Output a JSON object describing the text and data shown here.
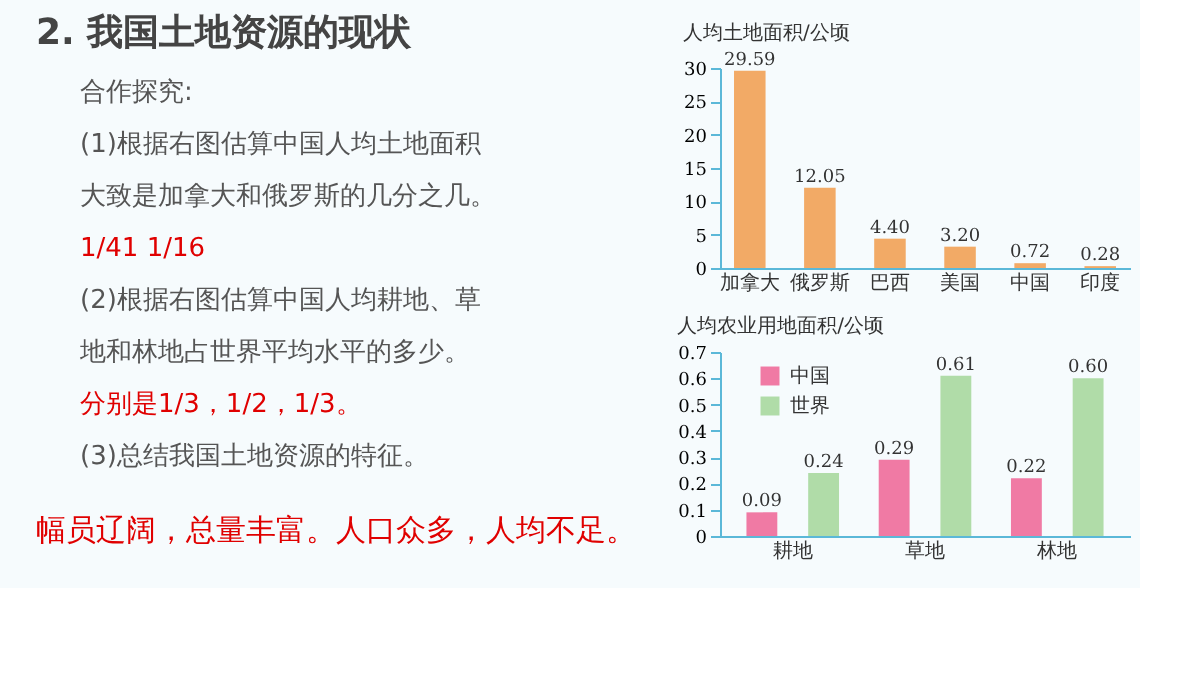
{
  "chart_data": [
    {
      "type": "other",
      "title": "2. 我国土地资源的现状",
      "annotations": [
        "合作探究:",
        "(1)根据右图估算中国人均土地面积",
        "大致是加拿大和俄罗斯的几分之几。",
        "1/41      1/16",
        "(2)根据右图估算中国人均耕地、草",
        "地和林地占世界平均水平的多少。",
        "分别是1/3，1/2，1/3。",
        "(3)总结我国土地资源的特征。",
        "幅员辽阔，总量丰富。人口众多，人均不足。"
      ],
      "colors": [
        "#555555",
        "#555555",
        "#555555",
        "#e00000",
        "#555555",
        "#555555",
        "#e00000",
        "#555555",
        "#e00000"
      ]
    },
    {
      "type": "bar",
      "ylabel": "人均土地面积/公顷",
      "categories": [
        "加拿大",
        "俄罗斯",
        "巴西",
        "美国",
        "中国",
        "印度"
      ],
      "values": [
        29.59,
        12.05,
        4.4,
        3.2,
        0.72,
        0.28
      ],
      "color": "#f2aa66",
      "value_labels": [
        "29.59",
        "12.05",
        "4.40",
        "3.20",
        "0.72",
        "0.28"
      ],
      "ylim": [
        0,
        30
      ],
      "yticks": [
        0,
        5,
        10,
        15,
        20,
        25,
        30
      ]
    },
    {
      "type": "bar",
      "ylabel": "人均农业用地面积/公顷",
      "categories": [
        "耕地",
        "草地",
        "林地"
      ],
      "series": [
        {
          "name": "中国",
          "color": "#f07aa4",
          "values": [
            0.09,
            0.29,
            0.22
          ],
          "value_labels": [
            "0.09",
            "0.29",
            "0.22"
          ]
        },
        {
          "name": "世界",
          "color": "#b0dca8",
          "values": [
            0.24,
            0.61,
            0.6
          ],
          "value_labels": [
            "0.24",
            "0.61",
            "0.60"
          ]
        }
      ],
      "ylim": [
        0,
        0.7
      ],
      "yticks": [
        0,
        0.1,
        0.2,
        0.3,
        0.4,
        0.5,
        0.6,
        0.7
      ],
      "legend": "top left"
    }
  ]
}
